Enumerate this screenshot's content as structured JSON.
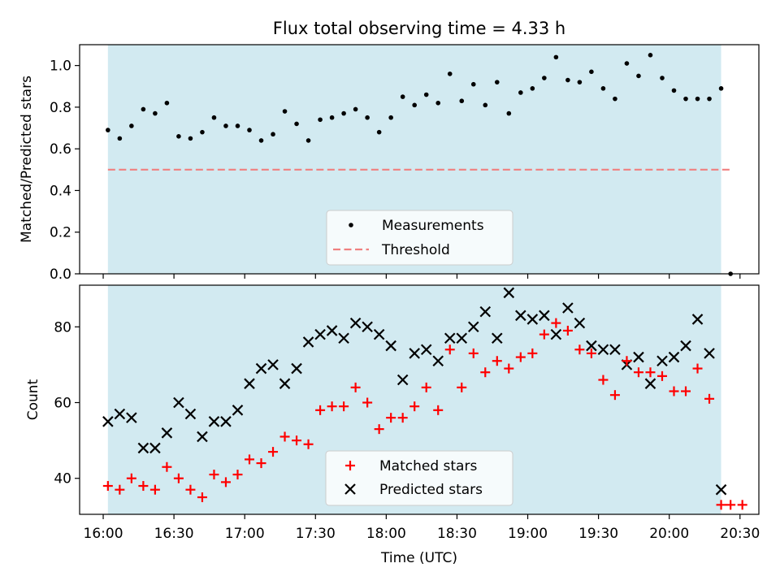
{
  "figure": {
    "title": "Flux total observing time = 4.33 h"
  },
  "colors": {
    "shade": "#add8e6",
    "threshold": "#f08080",
    "matched": "#ff0000",
    "predicted": "#000000",
    "measurements": "#000000"
  },
  "chart_data": [
    {
      "type": "scatter",
      "title": "Flux total observing time = 4.33 h",
      "xlabel": "",
      "ylabel": "Matched/Predicted stars",
      "ylim": [
        0,
        1.1
      ],
      "yticks": [
        0.0,
        0.2,
        0.4,
        0.6,
        0.8,
        1.0
      ],
      "ytick_labels": [
        "0.0",
        "0.2",
        "0.4",
        "0.6",
        "0.8",
        "1.0"
      ],
      "xlim_minutes_after_1600": [
        -10,
        278
      ],
      "shaded_range_minutes_after_1600": [
        2,
        262
      ],
      "legend": {
        "placement": "lower-center",
        "entries": [
          "Measurements",
          "Threshold"
        ]
      },
      "threshold": {
        "name": "Threshold",
        "value": 0.5,
        "x_range_minutes_after_1600": [
          2,
          266
        ]
      },
      "series": [
        {
          "name": "Measurements",
          "x_minutes_after_1600": [
            2,
            7,
            12,
            17,
            22,
            27,
            32,
            37,
            42,
            47,
            52,
            57,
            62,
            67,
            72,
            77,
            82,
            87,
            92,
            97,
            102,
            107,
            112,
            117,
            122,
            127,
            132,
            137,
            142,
            147,
            152,
            157,
            162,
            167,
            172,
            177,
            182,
            187,
            192,
            197,
            202,
            207,
            212,
            217,
            222,
            227,
            232,
            237,
            242,
            247,
            252,
            257,
            262,
            266
          ],
          "values": [
            0.69,
            0.65,
            0.71,
            0.79,
            0.77,
            0.82,
            0.66,
            0.65,
            0.68,
            0.75,
            0.71,
            0.71,
            0.69,
            0.64,
            0.67,
            0.78,
            0.72,
            0.64,
            0.74,
            0.75,
            0.77,
            0.79,
            0.75,
            0.68,
            0.75,
            0.85,
            0.81,
            0.86,
            0.82,
            0.96,
            0.83,
            0.91,
            0.81,
            0.92,
            0.77,
            0.87,
            0.89,
            0.94,
            1.04,
            0.93,
            0.92,
            0.97,
            0.89,
            0.84,
            1.01,
            0.95,
            1.05,
            0.94,
            0.88,
            0.84,
            0.84,
            0.84,
            0.89,
            0.0
          ]
        }
      ]
    },
    {
      "type": "scatter",
      "title": "",
      "xlabel": "Time (UTC)",
      "ylabel": "Count",
      "ylim": [
        30.5,
        91
      ],
      "yticks": [
        40,
        60,
        80
      ],
      "ytick_labels": [
        "40",
        "60",
        "80"
      ],
      "xticks_minutes_after_1600": [
        0,
        30,
        60,
        90,
        120,
        150,
        180,
        210,
        240,
        270
      ],
      "xtick_labels": [
        "16:00",
        "16:30",
        "17:00",
        "17:30",
        "18:00",
        "18:30",
        "19:00",
        "19:30",
        "20:00",
        "20:30"
      ],
      "xlim_minutes_after_1600": [
        -10,
        278
      ],
      "shaded_range_minutes_after_1600": [
        2,
        262
      ],
      "legend": {
        "placement": "lower-center",
        "entries": [
          "Matched stars",
          "Predicted stars"
        ]
      },
      "series": [
        {
          "name": "Matched stars",
          "x_minutes_after_1600": [
            2,
            7,
            12,
            17,
            22,
            27,
            32,
            37,
            42,
            47,
            52,
            57,
            62,
            67,
            72,
            77,
            82,
            87,
            92,
            97,
            102,
            107,
            112,
            117,
            122,
            127,
            132,
            137,
            142,
            147,
            152,
            157,
            162,
            167,
            172,
            177,
            182,
            187,
            192,
            197,
            202,
            207,
            212,
            217,
            222,
            227,
            232,
            237,
            242,
            247,
            252,
            257,
            262,
            266,
            271
          ],
          "values": [
            38,
            37,
            40,
            38,
            37,
            43,
            40,
            37,
            35,
            41,
            39,
            41,
            45,
            44,
            47,
            51,
            50,
            49,
            58,
            59,
            59,
            64,
            60,
            53,
            56,
            56,
            59,
            64,
            58,
            74,
            64,
            73,
            68,
            71,
            69,
            72,
            73,
            78,
            81,
            79,
            74,
            73,
            66,
            62,
            71,
            68,
            68,
            67,
            63,
            63,
            69,
            61,
            33,
            33,
            33
          ]
        },
        {
          "name": "Predicted stars",
          "x_minutes_after_1600": [
            2,
            7,
            12,
            17,
            22,
            27,
            32,
            37,
            42,
            47,
            52,
            57,
            62,
            67,
            72,
            77,
            82,
            87,
            92,
            97,
            102,
            107,
            112,
            117,
            122,
            127,
            132,
            137,
            142,
            147,
            152,
            157,
            162,
            167,
            172,
            177,
            182,
            187,
            192,
            197,
            202,
            207,
            212,
            217,
            222,
            227,
            232,
            237,
            242,
            247,
            252,
            257,
            262
          ],
          "values": [
            55,
            57,
            56,
            48,
            48,
            52,
            60,
            57,
            51,
            55,
            55,
            58,
            65,
            69,
            70,
            65,
            69,
            76,
            78,
            79,
            77,
            81,
            80,
            78,
            75,
            66,
            73,
            74,
            71,
            77,
            77,
            80,
            84,
            77,
            89,
            83,
            82,
            83,
            78,
            85,
            81,
            75,
            74,
            74,
            70,
            72,
            65,
            71,
            72,
            75,
            82,
            73,
            37
          ]
        }
      ]
    }
  ]
}
